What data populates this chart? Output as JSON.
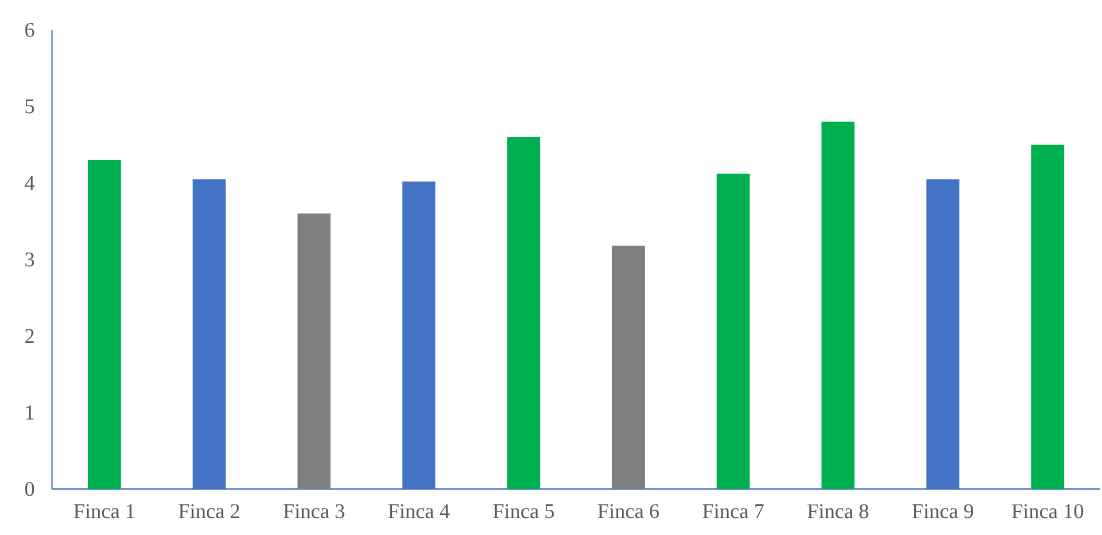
{
  "chart_data": {
    "type": "bar",
    "categories": [
      "Finca 1",
      "Finca 2",
      "Finca 3",
      "Finca 4",
      "Finca 5",
      "Finca 6",
      "Finca 7",
      "Finca 8",
      "Finca 9",
      "Finca 10"
    ],
    "values": [
      4.3,
      4.05,
      3.6,
      4.02,
      4.6,
      3.18,
      4.12,
      4.8,
      4.05,
      4.5
    ],
    "colors": [
      "#00b050",
      "#4472c4",
      "#7f7f7f",
      "#4472c4",
      "#00b050",
      "#7f7f7f",
      "#00b050",
      "#00b050",
      "#4472c4",
      "#00b050"
    ],
    "ylim": [
      0,
      6
    ],
    "yticks": [
      0,
      1,
      2,
      3,
      4,
      5,
      6
    ]
  }
}
